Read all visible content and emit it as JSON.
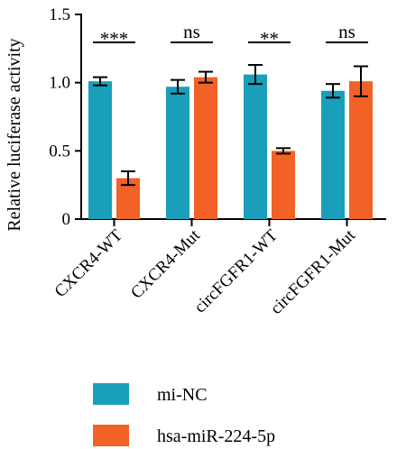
{
  "chart_data": {
    "type": "bar",
    "categories": [
      "CXCR4-WT",
      "CXCR4-Mut",
      "circFGFR1-WT",
      "circFGFR1-Mut"
    ],
    "series": [
      {
        "name": "mi-NC",
        "color": "#1a9fba",
        "values": [
          1.01,
          0.97,
          1.06,
          0.94
        ],
        "errors": [
          0.03,
          0.05,
          0.07,
          0.05
        ]
      },
      {
        "name": "hsa-miR-224-5p",
        "color": "#f26126",
        "values": [
          0.3,
          1.04,
          0.5,
          1.01
        ],
        "errors": [
          0.05,
          0.04,
          0.02,
          0.11
        ]
      }
    ],
    "significance": [
      "***",
      "ns",
      "**",
      "ns"
    ],
    "ylabel": "Relative luciferase activity",
    "ylim": [
      0,
      1.5
    ],
    "yticks": [
      0,
      0.5,
      1.0,
      1.5
    ],
    "ytick_labels": [
      "0",
      "0.5",
      "1.0",
      "1.5"
    ],
    "legend_position": "bottom",
    "grid": false
  }
}
